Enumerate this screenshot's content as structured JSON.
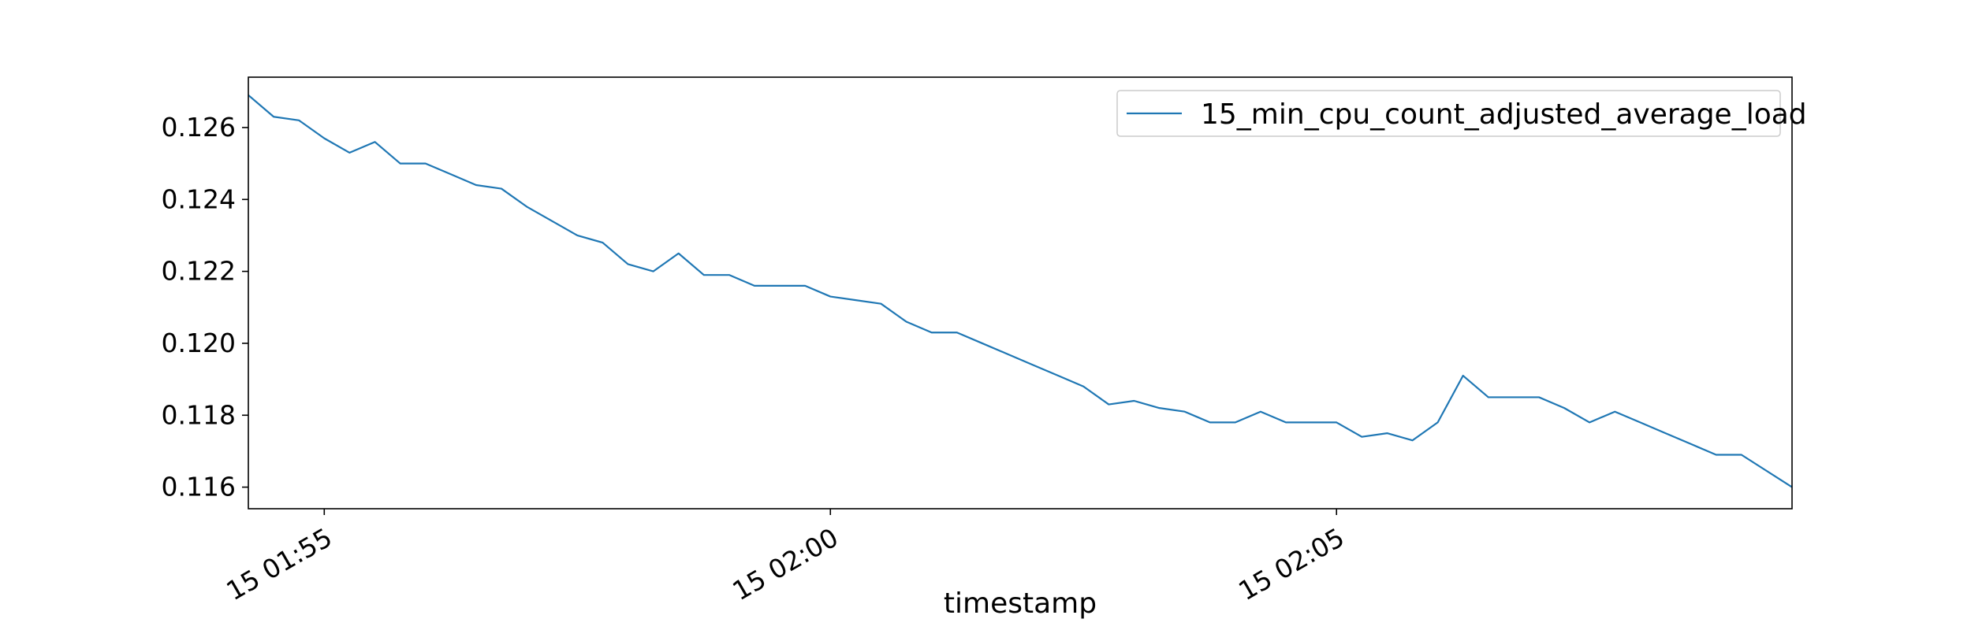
{
  "chart_data": {
    "type": "line",
    "xlabel": "timestamp",
    "ylabel": "",
    "x_tick_labels": [
      "15 01:55",
      "15 02:00",
      "15 02:05"
    ],
    "x_tick_times": [
      "01:55",
      "02:00",
      "02:05"
    ],
    "y_ticks": [
      0.116,
      0.118,
      0.12,
      0.122,
      0.124,
      0.126
    ],
    "xlim": [
      "01:54:15",
      "02:09:30"
    ],
    "ylim": [
      0.1154,
      0.1274
    ],
    "legend_position": "upper-right",
    "grid": false,
    "series": [
      {
        "name": "15_min_cpu_count_adjusted_average_load",
        "color": "#1f77b4",
        "x": [
          "01:54:15",
          "01:54:30",
          "01:54:45",
          "01:55:00",
          "01:55:15",
          "01:55:30",
          "01:55:45",
          "01:56:00",
          "01:56:15",
          "01:56:30",
          "01:56:45",
          "01:57:00",
          "01:57:15",
          "01:57:30",
          "01:57:45",
          "01:58:00",
          "01:58:15",
          "01:58:30",
          "01:58:45",
          "01:59:00",
          "01:59:15",
          "01:59:30",
          "01:59:45",
          "02:00:00",
          "02:00:15",
          "02:00:30",
          "02:00:45",
          "02:01:00",
          "02:01:15",
          "02:01:30",
          "02:01:45",
          "02:02:00",
          "02:02:15",
          "02:02:30",
          "02:02:45",
          "02:03:00",
          "02:03:15",
          "02:03:30",
          "02:03:45",
          "02:04:00",
          "02:04:15",
          "02:04:30",
          "02:04:45",
          "02:05:00",
          "02:05:15",
          "02:05:30",
          "02:05:45",
          "02:06:00",
          "02:06:15",
          "02:06:30",
          "02:06:45",
          "02:07:00",
          "02:07:15",
          "02:07:30",
          "02:07:45",
          "02:08:00",
          "02:08:15",
          "02:08:30",
          "02:08:45",
          "02:09:00",
          "02:09:30"
        ],
        "values": [
          0.1269,
          0.1263,
          0.1262,
          0.1257,
          0.1253,
          0.1256,
          0.125,
          0.125,
          0.1247,
          0.1244,
          0.1243,
          0.1238,
          0.1234,
          0.123,
          0.1228,
          0.1222,
          0.122,
          0.1225,
          0.1219,
          0.1219,
          0.1216,
          0.1216,
          0.1216,
          0.1213,
          0.1212,
          0.1211,
          0.1206,
          0.1203,
          0.1203,
          0.12,
          0.1197,
          0.1194,
          0.1191,
          0.1188,
          0.1183,
          0.1184,
          0.1182,
          0.1181,
          0.1178,
          0.1178,
          0.1181,
          0.1178,
          0.1178,
          0.1178,
          0.1174,
          0.1175,
          0.1173,
          0.1178,
          0.1191,
          0.1185,
          0.1185,
          0.1185,
          0.1182,
          0.1178,
          0.1181,
          0.1178,
          0.1175,
          0.1172,
          0.1169,
          0.1169,
          0.116
        ]
      }
    ]
  }
}
